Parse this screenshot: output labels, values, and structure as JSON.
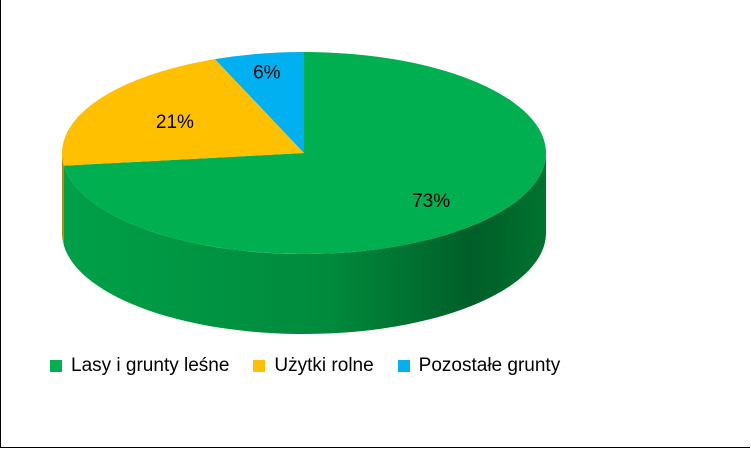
{
  "chart_data": {
    "type": "pie",
    "style": "3d",
    "categories": [
      "Lasy i grunty leśne",
      "Użytki rolne",
      "Pozostałe grunty"
    ],
    "values": [
      73,
      21,
      6
    ],
    "data_labels": [
      "73%",
      "21%",
      "6%"
    ],
    "colors": [
      "#00B050",
      "#FFC000",
      "#00B0F0"
    ],
    "side_colors": [
      "#007A36",
      "#B38700",
      "#007BA8"
    ],
    "legend_position": "bottom",
    "title": ""
  }
}
